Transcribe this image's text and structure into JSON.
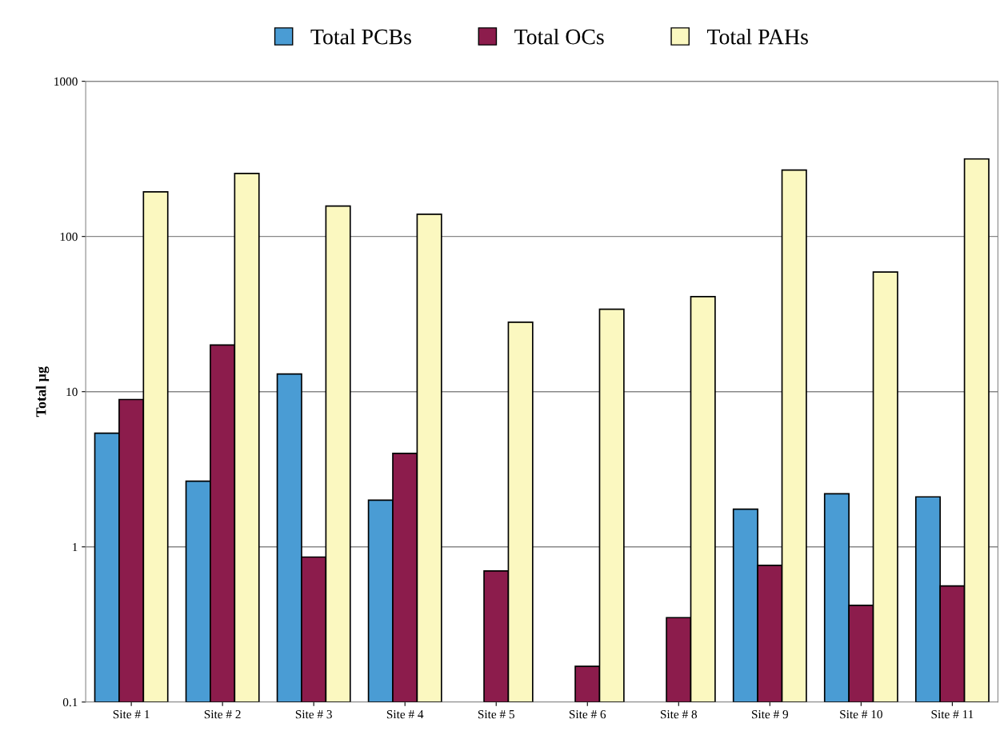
{
  "chart_data": {
    "type": "bar",
    "ylabel": "Total µg",
    "categories": [
      "Site # 1",
      "Site # 2",
      "Site # 3",
      "Site # 4",
      "Site # 5",
      "Site # 6",
      "Site # 8",
      "Site # 9",
      "Site # 10",
      "Site # 11"
    ],
    "series": [
      {
        "name": "Total PCBs",
        "color": "#4a9cd4",
        "values": [
          5.4,
          2.65,
          13,
          2.0,
          null,
          null,
          null,
          1.75,
          2.2,
          2.1
        ]
      },
      {
        "name": "Total OCs",
        "color": "#8c1c4c",
        "values": [
          8.9,
          20,
          0.86,
          4.0,
          0.7,
          0.17,
          0.35,
          0.76,
          0.42,
          0.56
        ]
      },
      {
        "name": "Total PAHs",
        "color": "#fbf8c0",
        "values": [
          194,
          255,
          157,
          139,
          28,
          34,
          41,
          268,
          59,
          316
        ]
      }
    ],
    "log": true,
    "ylim": [
      0.1,
      1000
    ],
    "yticks": [
      0.1,
      1,
      10,
      100,
      1000
    ],
    "grid": "y",
    "legend": "top"
  }
}
